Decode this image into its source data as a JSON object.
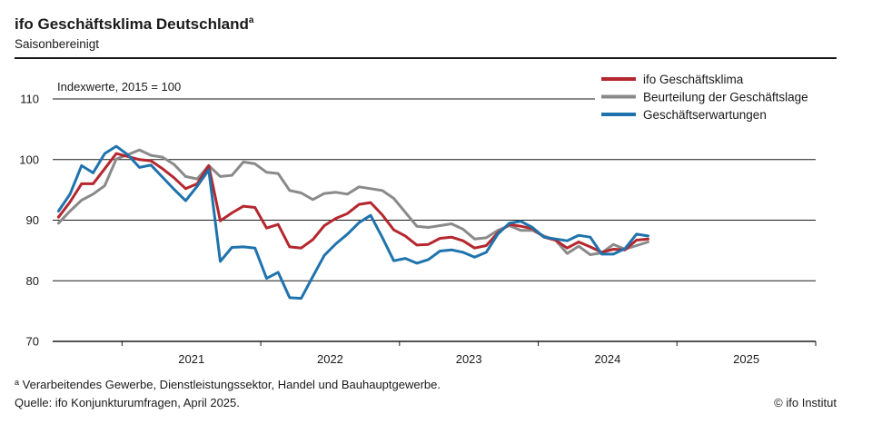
{
  "header": {
    "title": "ifo Geschäftsklima Deutschland",
    "title_marker": "a",
    "subtitle": "Saisonbereinigt"
  },
  "chart_data": {
    "type": "line",
    "ylabel": "Indexwerte, 2015 = 100",
    "ylim": [
      70,
      110
    ],
    "yticks": [
      70,
      80,
      90,
      100,
      110
    ],
    "gridlines_at": [
      80,
      90,
      100,
      110
    ],
    "x_start": "2020-07",
    "x_end": "2025-12",
    "year_labels": [
      "2021",
      "2022",
      "2023",
      "2024",
      "2025"
    ],
    "legend_position": "top-right",
    "series": [
      {
        "name": "ifo Geschäftsklima",
        "color": "#b5272f",
        "start": "2020-07",
        "values": [
          90.5,
          93,
          96,
          96,
          98.5,
          101,
          100.5,
          100,
          99.8,
          98.5,
          97,
          95.2,
          96,
          99,
          89.9,
          91.2,
          92.3,
          92.1,
          88.7,
          89.3,
          85.6,
          85.4,
          86.8,
          89.1,
          90.3,
          91.1,
          92.6,
          92.9,
          90.9,
          88.4,
          87.4,
          85.9,
          86,
          87,
          87.2,
          86.6,
          85.4,
          85.8,
          87.9,
          89.3,
          89,
          88.6,
          87.2,
          86.7,
          85.4,
          86.4,
          85.6,
          84.7,
          85.2,
          85.1,
          86.7,
          86.9
        ]
      },
      {
        "name": "Beurteilung der Geschäftslage",
        "color": "#8a8a8a",
        "start": "2020-07",
        "values": [
          89.5,
          91.5,
          93.3,
          94.3,
          95.7,
          100.1,
          100.8,
          101.6,
          100.7,
          100.4,
          99.2,
          97.2,
          96.8,
          99,
          97.2,
          97.4,
          99.6,
          99.3,
          97.9,
          97.7,
          94.9,
          94.5,
          93.4,
          94.4,
          94.6,
          94.3,
          95.5,
          95.2,
          94.9,
          93.6,
          91.3,
          89,
          88.8,
          89.1,
          89.4,
          88.5,
          86.9,
          87.1,
          88.3,
          89.1,
          88.3,
          88.3,
          87.4,
          86.7,
          84.5,
          85.7,
          84.3,
          84.6,
          86,
          85.2,
          85.8,
          86.4
        ]
      },
      {
        "name": "Geschäftserwartungen",
        "color": "#1f73ad",
        "start": "2020-07",
        "values": [
          91.5,
          94.3,
          99,
          97.8,
          101,
          102.2,
          100.8,
          98.7,
          99.1,
          97.1,
          95.1,
          93.2,
          95.6,
          98.3,
          83.2,
          85.5,
          85.6,
          85.4,
          80.4,
          81.4,
          77.2,
          77.1,
          80.7,
          84.2,
          86.1,
          87.7,
          89.6,
          90.8,
          87.2,
          83.3,
          83.7,
          82.9,
          83.5,
          84.9,
          85.1,
          84.7,
          83.9,
          84.7,
          87.7,
          89.5,
          89.8,
          88.8,
          87.2,
          86.9,
          86.6,
          87.5,
          87.2,
          84.4,
          84.4,
          85.3,
          87.7,
          87.4
        ]
      }
    ]
  },
  "footer": {
    "footnote_marker": "a",
    "footnote": "Verarbeitendes Gewerbe, Dienstleistungssektor, Handel und Bauhauptgewerbe.",
    "source": "Quelle: ifo Konjunkturumfragen, April 2025.",
    "copyright": "© ifo Institut"
  }
}
